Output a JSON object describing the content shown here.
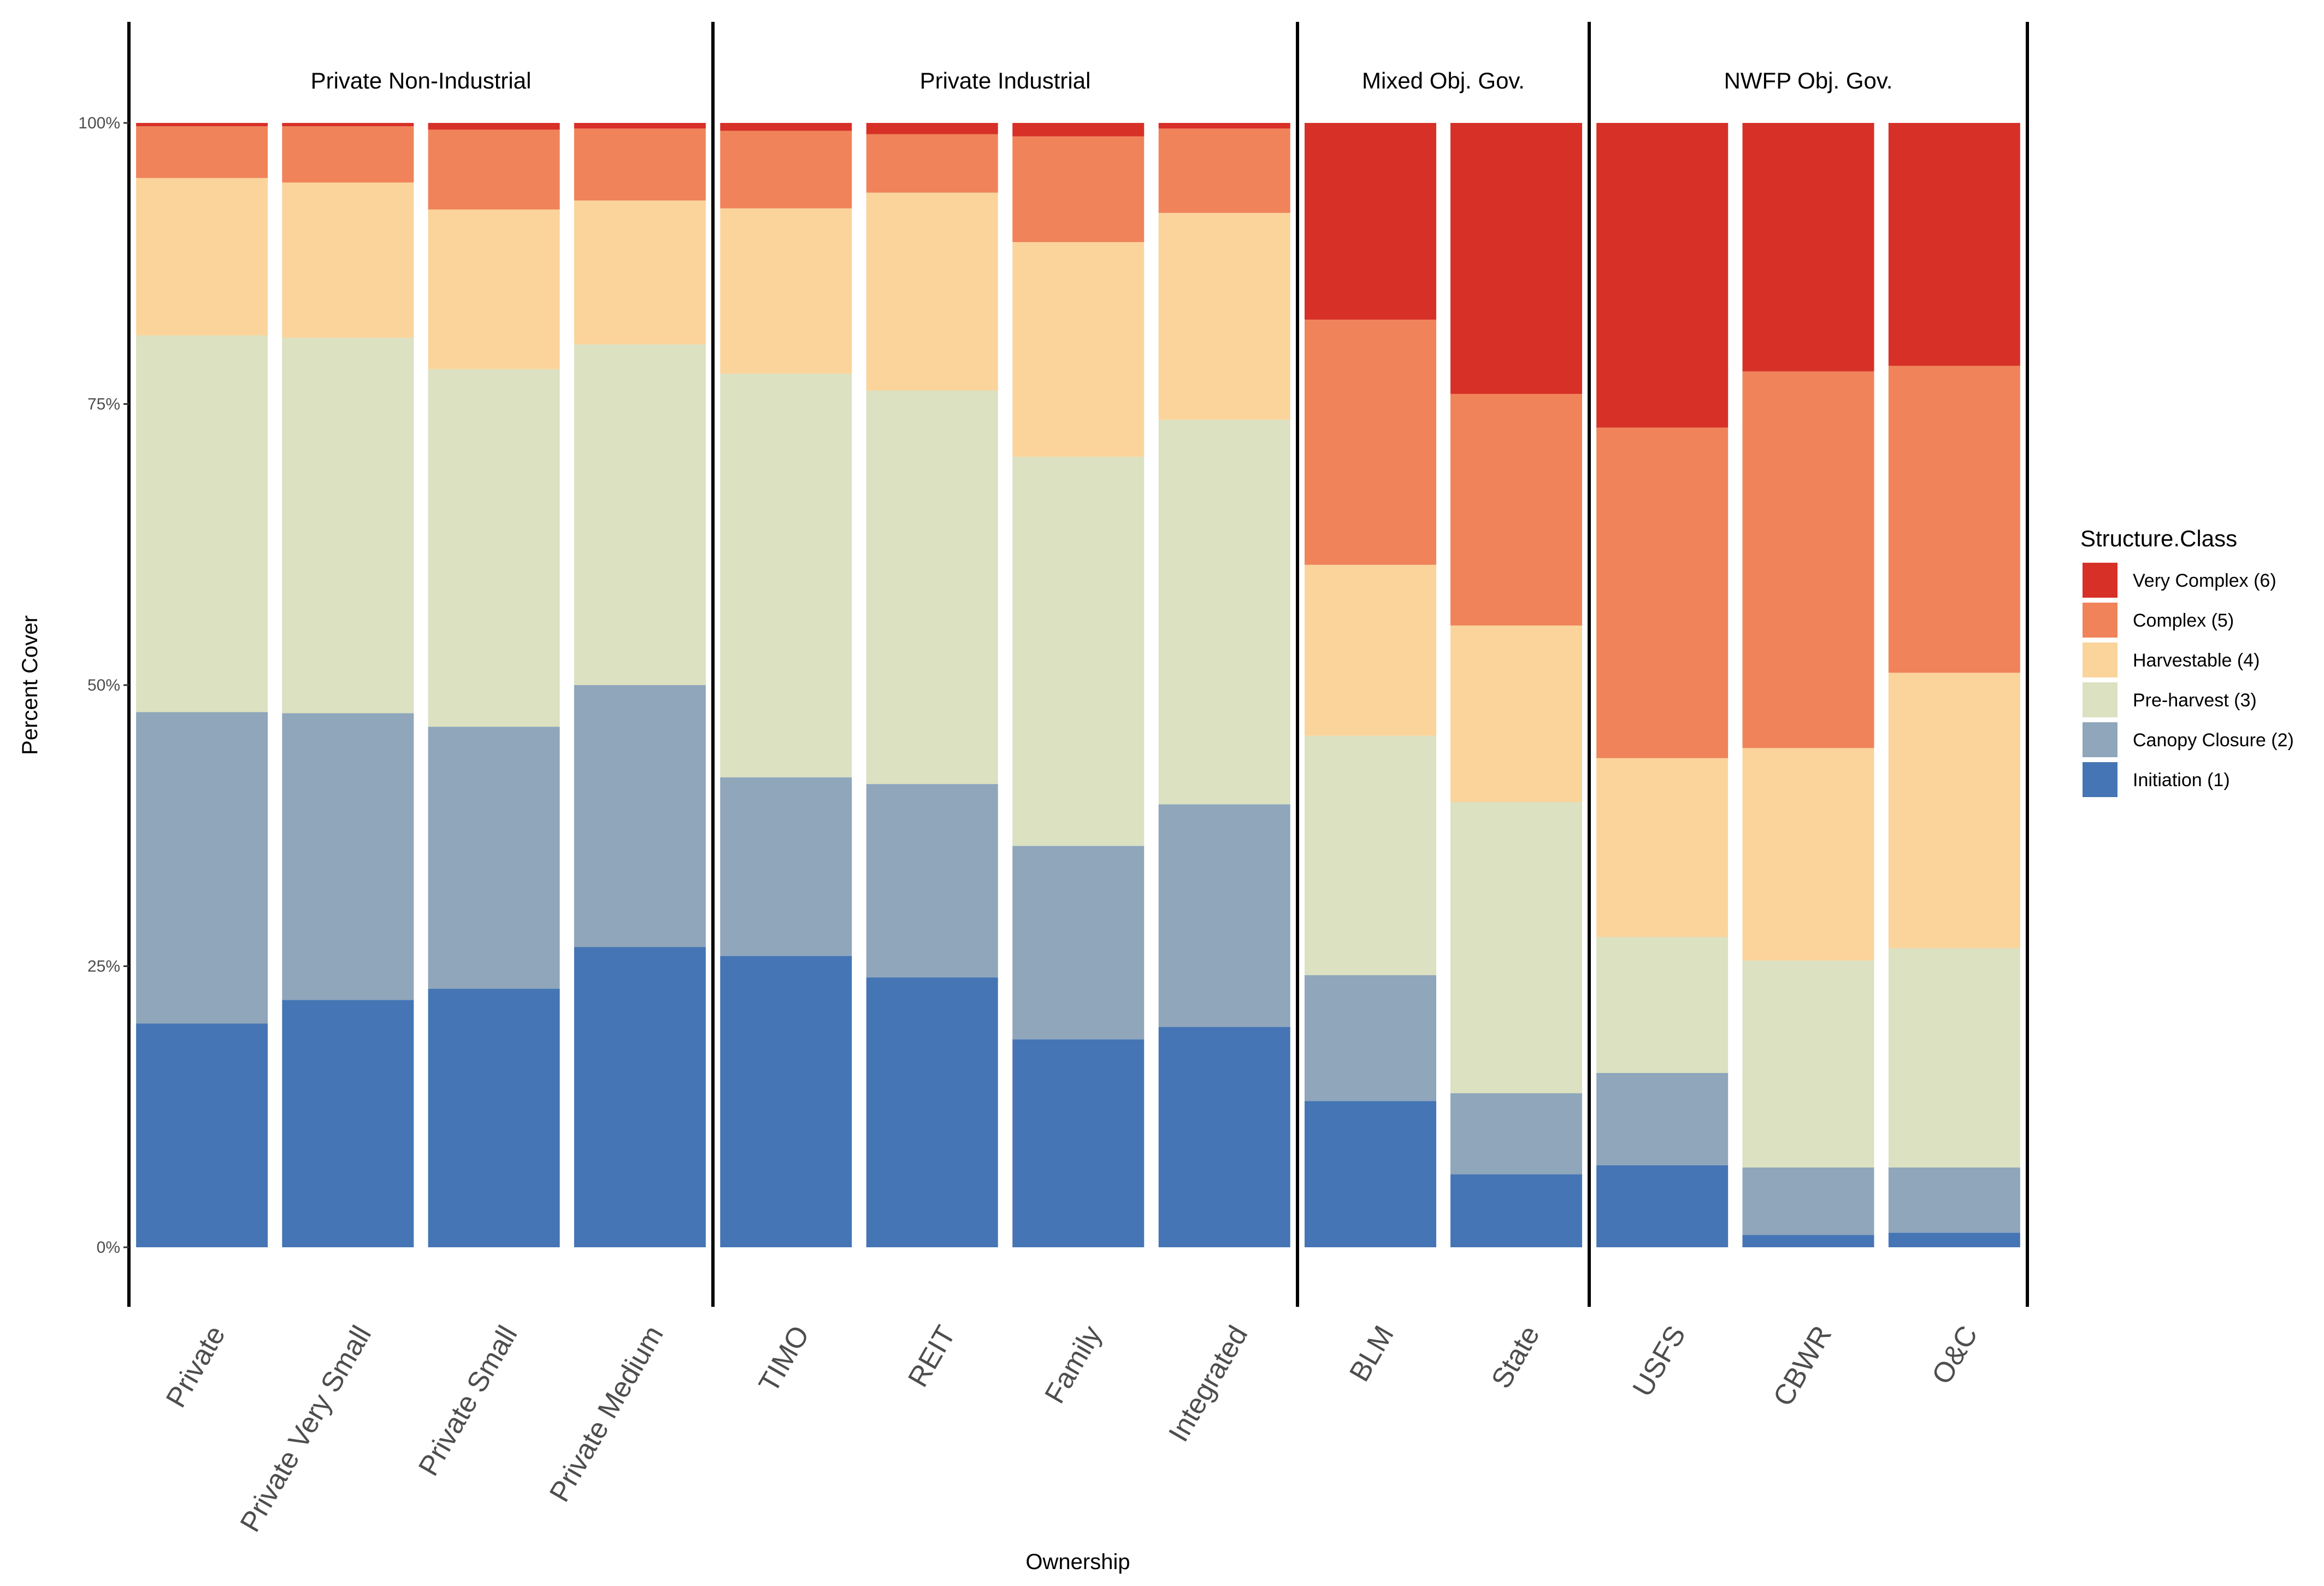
{
  "chart_data": {
    "type": "bar",
    "stacked": true,
    "xlabel": "Ownership",
    "ylabel": "Percent Cover",
    "ylim": [
      0,
      100
    ],
    "yticks": [
      "0%",
      "25%",
      "50%",
      "75%",
      "100%"
    ],
    "legend": {
      "title": "Structure.Class",
      "position": "right",
      "entries": [
        "Very Complex (6)",
        "Complex (5)",
        "Harvestable (4)",
        "Pre-harvest (3)",
        "Canopy Closure (2)",
        "Initiation (1)"
      ]
    },
    "colors": [
      "#d73027",
      "#f0835a",
      "#fbd49b",
      "#dbe1c1",
      "#8fa6bb",
      "#4575b4"
    ],
    "panels": [
      {
        "title": "Private Non-Industrial",
        "categories": [
          "Private",
          "Private Very Small",
          "Private Small",
          "Private Medium"
        ]
      },
      {
        "title": "Private Industrial",
        "categories": [
          "TIMO",
          "REIT",
          "Family",
          "Integrated"
        ]
      },
      {
        "title": "Mixed Obj. Gov.",
        "categories": [
          "BLM",
          "State"
        ]
      },
      {
        "title": "NWFP Obj. Gov.",
        "categories": [
          "USFS",
          "CBWR",
          "O&C"
        ]
      }
    ],
    "series_order_bottom_to_top": [
      "Initiation (1)",
      "Canopy Closure (2)",
      "Pre-harvest (3)",
      "Harvestable (4)",
      "Complex (5)",
      "Very Complex (6)"
    ],
    "values": {
      "Private": [
        19.9,
        27.7,
        33.5,
        14.0,
        4.6,
        0.3
      ],
      "Private Very Small": [
        22.0,
        25.5,
        33.4,
        13.8,
        5.0,
        0.3
      ],
      "Private Small": [
        23.0,
        23.3,
        31.8,
        14.2,
        7.1,
        0.6
      ],
      "Private Medium": [
        26.7,
        23.3,
        30.3,
        12.8,
        6.4,
        0.5
      ],
      "TIMO": [
        25.9,
        15.9,
        35.9,
        14.7,
        6.9,
        0.7
      ],
      "REIT": [
        24.0,
        17.2,
        35.0,
        17.6,
        5.2,
        1.0
      ],
      "Family": [
        18.5,
        17.2,
        34.6,
        19.1,
        9.4,
        1.2
      ],
      "Integrated": [
        19.6,
        19.8,
        34.2,
        18.4,
        7.5,
        0.5
      ],
      "BLM": [
        13.0,
        11.2,
        21.3,
        15.2,
        21.8,
        17.5
      ],
      "State": [
        6.5,
        7.2,
        25.9,
        15.7,
        20.6,
        24.1
      ],
      "USFS": [
        7.3,
        8.2,
        12.1,
        15.9,
        29.4,
        27.1
      ],
      "CBWR": [
        1.1,
        6.0,
        18.4,
        18.9,
        33.5,
        22.1
      ],
      "O&C": [
        1.3,
        5.8,
        19.5,
        24.5,
        27.3,
        21.6
      ]
    }
  }
}
